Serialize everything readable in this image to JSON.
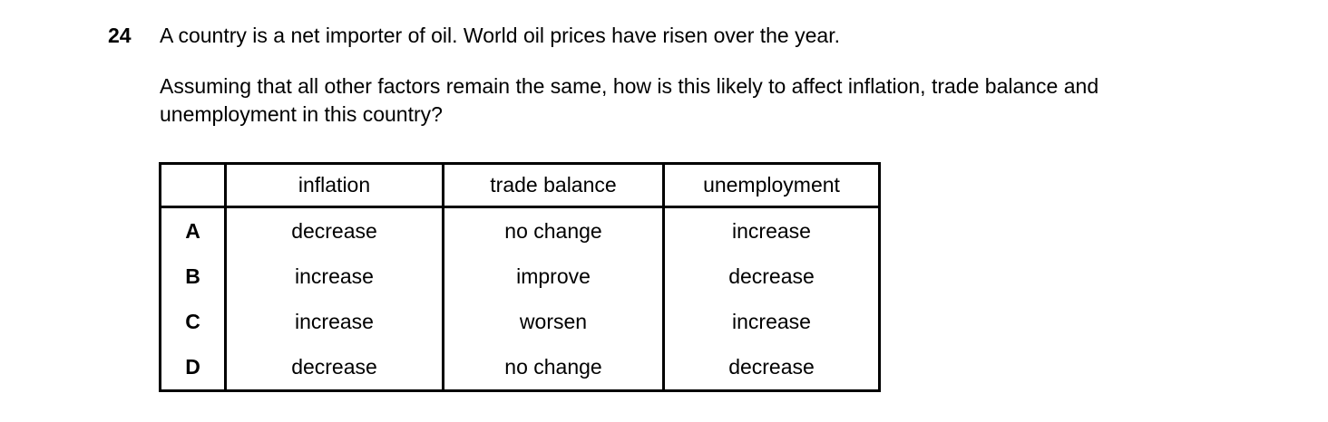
{
  "question": {
    "number": "24",
    "stem_intro": "A country is a net importer of oil. World oil prices have risen over the year.",
    "stem_body": "Assuming that all other factors remain the same, how is this likely to affect inflation, trade balance and unemployment in this country?"
  },
  "table": {
    "headers": [
      "",
      "inflation",
      "trade balance",
      "unemployment"
    ],
    "rows": [
      {
        "option": "A",
        "inflation": "decrease",
        "trade_balance": "no change",
        "unemployment": "increase"
      },
      {
        "option": "B",
        "inflation": "increase",
        "trade_balance": "improve",
        "unemployment": "decrease"
      },
      {
        "option": "C",
        "inflation": "increase",
        "trade_balance": "worsen",
        "unemployment": "increase"
      },
      {
        "option": "D",
        "inflation": "decrease",
        "trade_balance": "no change",
        "unemployment": "decrease"
      }
    ]
  },
  "colors": {
    "text": "#000000",
    "background": "#ffffff",
    "table_border": "#000000"
  }
}
